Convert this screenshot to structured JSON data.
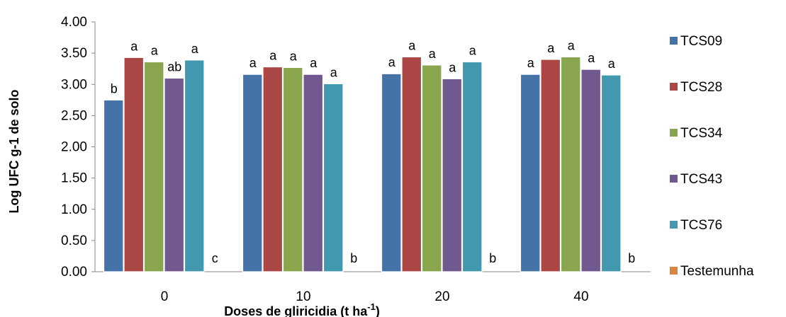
{
  "chart_data": {
    "type": "bar",
    "categories": [
      "0",
      "10",
      "20",
      "40"
    ],
    "series": [
      {
        "name": "TCS09",
        "color": "#4572A7",
        "values": [
          2.75,
          3.16,
          3.17,
          3.16
        ],
        "letters": [
          "b",
          "a",
          "a",
          "a"
        ]
      },
      {
        "name": "TCS28",
        "color": "#AA4643",
        "values": [
          3.43,
          3.28,
          3.44,
          3.4
        ],
        "letters": [
          "a",
          "a",
          "a",
          "a"
        ]
      },
      {
        "name": "TCS34",
        "color": "#89A54E",
        "values": [
          3.36,
          3.27,
          3.31,
          3.44
        ],
        "letters": [
          "a",
          "a",
          "a",
          "a"
        ]
      },
      {
        "name": "TCS43",
        "color": "#71588F",
        "values": [
          3.1,
          3.16,
          3.09,
          3.24
        ],
        "letters": [
          "ab",
          "a",
          "a",
          "a"
        ]
      },
      {
        "name": "TCS76",
        "color": "#4198AF",
        "values": [
          3.39,
          3.01,
          3.36,
          3.15
        ],
        "letters": [
          "a",
          "a",
          "a",
          "a"
        ]
      },
      {
        "name": "Testemunha",
        "color": "#DB843D",
        "values": [
          0,
          0,
          0,
          0
        ],
        "letters": [
          "c",
          "b",
          "b",
          "b"
        ]
      }
    ],
    "y_ticks": [
      "0.00",
      "0.50",
      "1.00",
      "1.50",
      "2.00",
      "2.50",
      "3.00",
      "3.50",
      "4.00"
    ],
    "ylim": [
      0,
      4
    ],
    "xlabel": "Doses de gliricidia (t ha",
    "xlabel_sup": "-1",
    "xlabel_close": ")",
    "ylabel": "Log UFC g-1 de solo",
    "legend_position": "right",
    "grid": false
  }
}
